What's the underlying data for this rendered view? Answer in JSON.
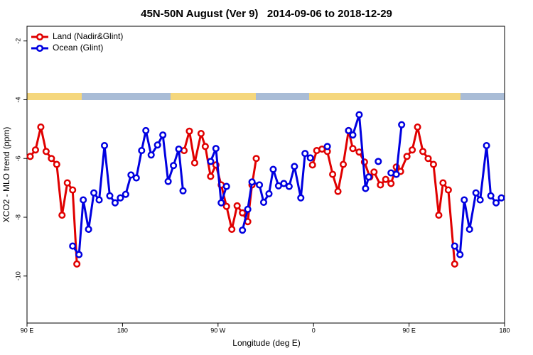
{
  "chart_data": {
    "type": "line",
    "title": "45N-50N August (Ver 9)   2014-09-06 to 2018-12-29",
    "x_label": "Longitude (deg E)",
    "y_label": "XCO2 - MLO trend (ppm)",
    "xlim": [
      90,
      540
    ],
    "xticks": [
      {
        "value": 90,
        "label": "90 E"
      },
      {
        "value": 180,
        "label": "180"
      },
      {
        "value": 270,
        "label": "90 W"
      },
      {
        "value": 360,
        "label": "0"
      },
      {
        "value": 450,
        "label": "90 E"
      },
      {
        "value": 540,
        "label": "180"
      }
    ],
    "ylim": [
      -11.6,
      -1.5
    ],
    "yticks": [
      -2,
      -4,
      -6,
      -8,
      -10
    ],
    "legend": "top-left",
    "series": [
      {
        "name": "Land (Nadir&Glint)",
        "color": "#e00000",
        "x": [
          93,
          98,
          103,
          108,
          113,
          118,
          123,
          128,
          133,
          137,
          null,
          238,
          243,
          248,
          254,
          258,
          263,
          268,
          273,
          278,
          283,
          288,
          293,
          298,
          302,
          306,
          null,
          359,
          363,
          368,
          373,
          378,
          383,
          388,
          393,
          397,
          403,
          408,
          413,
          417,
          423,
          428,
          433,
          438,
          442,
          448,
          453,
          458,
          463,
          468,
          473,
          478,
          482,
          487,
          493
        ],
        "values": [
          -5.93,
          -5.71,
          -4.93,
          -5.76,
          -6.0,
          -6.2,
          -7.93,
          -6.83,
          -7.07,
          -9.59,
          null,
          -5.73,
          -5.07,
          -6.15,
          -5.15,
          -5.59,
          -6.61,
          -6.22,
          -6.9,
          -7.63,
          -8.41,
          -7.61,
          -7.85,
          -8.15,
          -6.9,
          -6.0,
          null,
          -6.22,
          -5.73,
          -5.68,
          -5.76,
          -6.54,
          -7.12,
          -6.2,
          -5.05,
          -5.66,
          -5.78,
          -6.12,
          -6.63,
          -6.46,
          -6.9,
          -6.71,
          -6.85,
          -6.29,
          -6.44,
          -5.93,
          -5.71,
          -4.93,
          -5.76,
          -6.0,
          -6.2,
          -7.93,
          -6.83,
          -7.07,
          -9.59
        ]
      },
      {
        "name": "Ocean (Glint)",
        "color": "#0000e0",
        "x": [
          133,
          139,
          143,
          148,
          153,
          158,
          163,
          168,
          173,
          178,
          183,
          188,
          193,
          198,
          202,
          207,
          213,
          218,
          223,
          228,
          233,
          237,
          null,
          263,
          268,
          273,
          278,
          null,
          293,
          298,
          302,
          309,
          313,
          318,
          322,
          327,
          332,
          337,
          342,
          348,
          352,
          357,
          null,
          373,
          null,
          393,
          397,
          403,
          409,
          412,
          null,
          421,
          null,
          433,
          438,
          443,
          null,
          493,
          498,
          502,
          507,
          513,
          517,
          523,
          527,
          532,
          537
        ],
        "values": [
          -8.98,
          -9.27,
          -7.41,
          -8.41,
          -7.17,
          -7.41,
          -5.56,
          -7.27,
          -7.51,
          -7.34,
          -7.22,
          -6.56,
          -6.66,
          -5.73,
          -5.05,
          -5.88,
          -5.54,
          -5.2,
          -6.78,
          -6.24,
          -5.68,
          -7.1,
          null,
          -6.1,
          -5.66,
          -7.51,
          -6.95,
          null,
          -8.44,
          -7.73,
          -6.8,
          -6.9,
          -7.49,
          -7.2,
          -6.37,
          -6.93,
          -6.85,
          -6.95,
          -6.27,
          -7.34,
          -5.83,
          -5.98,
          null,
          -5.59,
          null,
          -5.05,
          -5.2,
          -4.51,
          -7.02,
          -6.63,
          null,
          -6.1,
          null,
          -6.49,
          -6.54,
          -4.85,
          null,
          -8.98,
          -9.27,
          -7.41,
          -8.41,
          -7.17,
          -7.41,
          -5.56,
          -7.27,
          -7.51,
          -7.34
        ]
      }
    ]
  }
}
